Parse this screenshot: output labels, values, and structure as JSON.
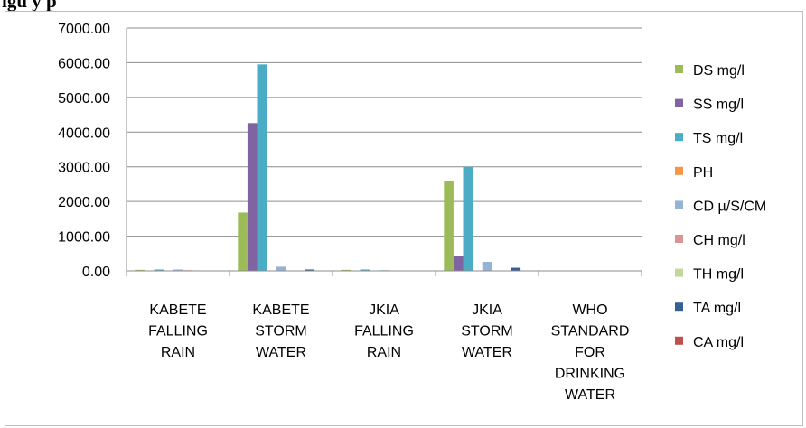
{
  "header_fragment": "igu                                    y         p",
  "chart_data": {
    "type": "bar",
    "categories": [
      [
        "KABETE",
        "FALLING",
        "RAIN"
      ],
      [
        "KABETE",
        "STORM",
        "WATER"
      ],
      [
        "JKIA",
        "FALLING",
        "RAIN"
      ],
      [
        "JKIA",
        "STORM",
        "WATER"
      ],
      [
        "WHO",
        "STANDARD",
        "FOR",
        "DRINKING",
        "WATER"
      ]
    ],
    "ylim": [
      0,
      7000
    ],
    "yticks": [
      "0.00",
      "1000.00",
      "2000.00",
      "3000.00",
      "4000.00",
      "5000.00",
      "6000.00",
      "7000.00"
    ],
    "grid": true,
    "legend_position": "right",
    "series": [
      {
        "name": "DS mg/l",
        "color": "#9bbb59",
        "values": [
          30,
          1680,
          30,
          2580,
          0
        ]
      },
      {
        "name": "SS mg/l",
        "color": "#8064a2",
        "values": [
          10,
          4260,
          10,
          420,
          0
        ]
      },
      {
        "name": "TS mg/l",
        "color": "#4bacc6",
        "values": [
          40,
          5950,
          40,
          3000,
          0
        ]
      },
      {
        "name": "PH",
        "color": "#f79646",
        "values": [
          7,
          7,
          7,
          7,
          0
        ]
      },
      {
        "name": "CD µ/S/CM",
        "color": "#95b3d7",
        "values": [
          40,
          120,
          20,
          260,
          0
        ]
      },
      {
        "name": "CH mg/l",
        "color": "#d99694",
        "values": [
          20,
          10,
          5,
          10,
          0
        ]
      },
      {
        "name": "TH mg/l",
        "color": "#c3d69b",
        "values": [
          15,
          10,
          5,
          10,
          0
        ]
      },
      {
        "name": "TA mg/l",
        "color": "#376092",
        "values": [
          10,
          40,
          5,
          90,
          0
        ]
      },
      {
        "name": "CA mg/l",
        "color": "#c0504d",
        "values": [
          5,
          10,
          3,
          10,
          0
        ]
      }
    ]
  }
}
